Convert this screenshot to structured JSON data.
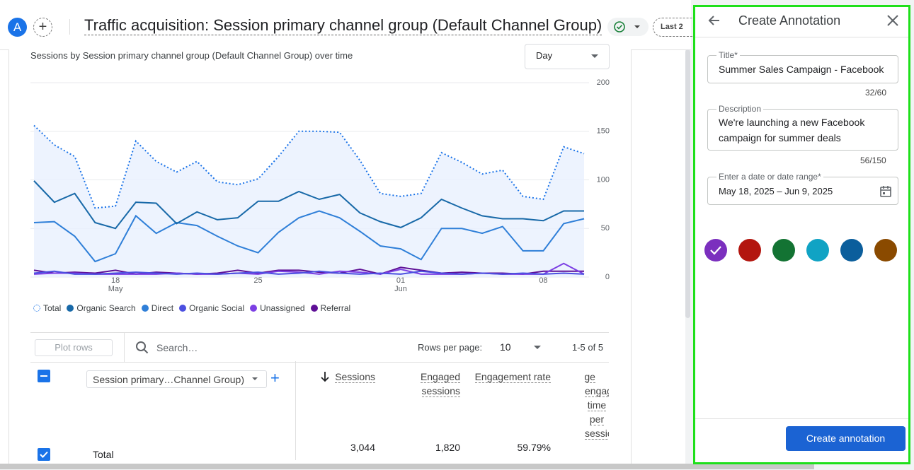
{
  "header": {
    "avatar": "A",
    "title": "Traffic acquisition: Session primary channel group (Default Channel Group)",
    "date_range": "Last 2"
  },
  "chart_data": {
    "type": "line",
    "title": "Sessions by Session primary channel group (Default Channel Group) over time",
    "granularity": "Day",
    "categories": [
      null,
      null,
      null,
      null,
      "18",
      null,
      null,
      null,
      null,
      null,
      null,
      "25",
      null,
      null,
      null,
      null,
      null,
      null,
      "01",
      null,
      null,
      null,
      null,
      null,
      null,
      "08",
      null,
      null
    ],
    "category_months": [
      null,
      null,
      null,
      null,
      "May",
      null,
      null,
      null,
      null,
      null,
      null,
      null,
      null,
      null,
      null,
      null,
      null,
      null,
      "Jun",
      null,
      null,
      null,
      null,
      null,
      null,
      null,
      null,
      null
    ],
    "ylim": [
      0,
      200
    ],
    "yticks": [
      0,
      50,
      100,
      150,
      200
    ],
    "grid": true,
    "series": [
      {
        "name": "Total",
        "color": "#1a73e8",
        "line_style": "dotted",
        "area": true,
        "values": [
          156,
          136,
          124,
          71,
          73,
          140,
          119,
          108,
          119,
          98,
          95,
          101,
          124,
          150,
          150,
          149,
          120,
          86,
          83,
          86,
          128,
          118,
          106,
          110,
          83,
          80,
          134,
          127
        ]
      },
      {
        "name": "Organic Search",
        "color": "#1869a8",
        "values": [
          99,
          77,
          86,
          56,
          50,
          77,
          76,
          55,
          67,
          59,
          61,
          78,
          78,
          88,
          80,
          85,
          66,
          57,
          51,
          61,
          80,
          71,
          63,
          60,
          60,
          58,
          68,
          68
        ]
      },
      {
        "name": "Direct",
        "color": "#2f7fd8",
        "values": [
          56,
          57,
          42,
          16,
          24,
          63,
          45,
          56,
          53,
          42,
          32,
          25,
          46,
          61,
          68,
          61,
          47,
          32,
          29,
          18,
          50,
          50,
          45,
          52,
          27,
          27,
          55,
          60
        ]
      },
      {
        "name": "Organic Social",
        "color": "#4b4fe0",
        "values": [
          4,
          6,
          3,
          3,
          4,
          5,
          4,
          3,
          4,
          3,
          4,
          5,
          3,
          4,
          6,
          4,
          3,
          4,
          3,
          6,
          4,
          3,
          4,
          3,
          4,
          3,
          4,
          3
        ]
      },
      {
        "name": "Unassigned",
        "color": "#7c3fe4",
        "values": [
          3,
          4,
          4,
          3,
          3,
          3,
          3,
          4,
          3,
          3,
          4,
          3,
          6,
          5,
          3,
          6,
          5,
          3,
          8,
          3,
          3,
          3,
          4,
          3,
          3,
          3,
          14,
          3
        ]
      },
      {
        "name": "Referral",
        "color": "#5e0f96",
        "values": [
          7,
          4,
          5,
          4,
          7,
          3,
          5,
          4,
          3,
          4,
          7,
          4,
          7,
          7,
          5,
          4,
          8,
          3,
          10,
          7,
          4,
          5,
          4,
          4,
          3,
          6,
          6,
          6
        ]
      }
    ]
  },
  "table": {
    "plot_rows": "Plot rows",
    "search_placeholder": "Search…",
    "rows_per_page_label": "Rows per page:",
    "rows_per_page": "10",
    "pagination": "1-5 of 5",
    "dimension": "Session primary…Channel Group)",
    "columns": [
      "Sessions",
      "Engaged sessions",
      "Engagement rate",
      "Average engagement time per session"
    ],
    "total_row": {
      "label": "Total",
      "values": [
        "3,044",
        "1,820",
        "59.79%"
      ]
    }
  },
  "annotation_panel": {
    "title": "Create Annotation",
    "fields": [
      {
        "label": "Title*",
        "value": "Summer Sales Campaign - Facebook",
        "counter": "32/60"
      },
      {
        "label": "Description",
        "value": "We're launching a new Facebook campaign for summer deals",
        "counter": "56/150"
      },
      {
        "label": "Enter a date or date range*",
        "value": "May 18, 2025 – Jun 9, 2025"
      }
    ],
    "colors": [
      "#7b2fbe",
      "#b3160f",
      "#137333",
      "#10a3c4",
      "#0b5e9c",
      "#8a4a00"
    ],
    "selected_color": 0,
    "submit": "Create annotation"
  }
}
